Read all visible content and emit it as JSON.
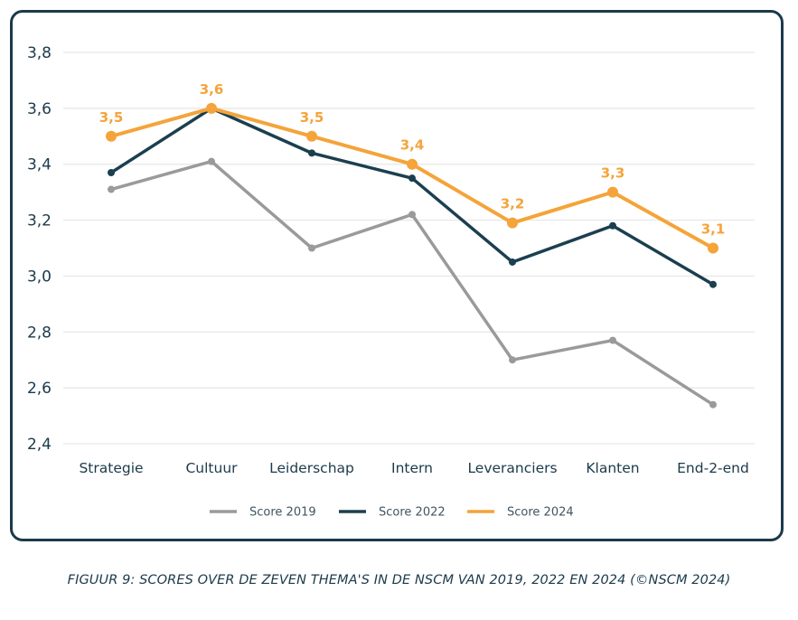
{
  "caption": "FIGUUR 9: SCORES OVER DE ZEVEN THEMA'S IN DE NSCM VAN 2019, 2022 EN 2024 (©NSCM 2024)",
  "chart_data": {
    "type": "line",
    "categories": [
      "Strategie",
      "Cultuur",
      "Leiderschap",
      "Intern",
      "Leveranciers",
      "Klanten",
      "End-2-end"
    ],
    "ylim": [
      2.4,
      3.8
    ],
    "yticks": [
      "2,4",
      "2,6",
      "2,8",
      "3,0",
      "3,2",
      "3,4",
      "3,6",
      "3,8"
    ],
    "ytick_values": [
      2.4,
      2.6,
      2.8,
      3.0,
      3.2,
      3.4,
      3.6,
      3.8
    ],
    "grid": true,
    "legend_position": "bottom",
    "series": [
      {
        "name": "Score 2019",
        "color": "#9a9a9a",
        "values": [
          3.31,
          3.41,
          3.1,
          3.22,
          2.7,
          2.77,
          2.54
        ]
      },
      {
        "name": "Score 2022",
        "color": "#1b3f4f",
        "values": [
          3.37,
          3.6,
          3.44,
          3.35,
          3.05,
          3.18,
          2.97
        ]
      },
      {
        "name": "Score 2024",
        "color": "#f4a43a",
        "values": [
          3.5,
          3.6,
          3.5,
          3.4,
          3.19,
          3.3,
          3.1
        ],
        "data_labels": [
          "3,5",
          "3,6",
          "3,5",
          "3,4",
          "3,2",
          "3,3",
          "3,1"
        ]
      }
    ]
  }
}
